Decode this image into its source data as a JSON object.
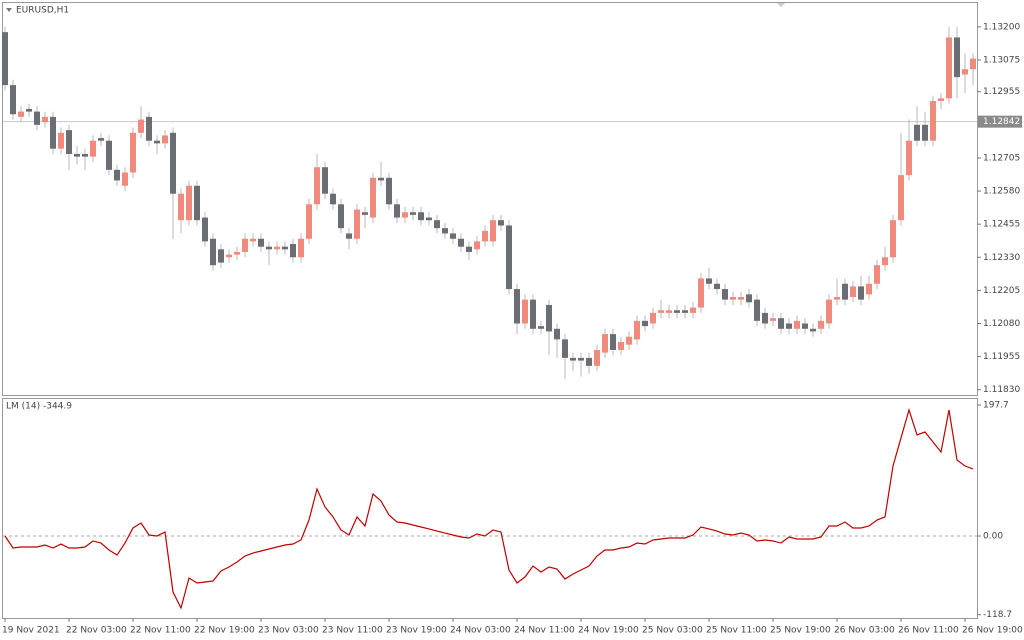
{
  "chart_data": [
    {
      "type": "candlestick",
      "title": "EURUSD,H1",
      "categories": [
        "19 Nov 2021",
        null,
        null,
        null,
        null,
        null,
        null,
        null,
        "22 Nov 03:00",
        null,
        null,
        null,
        null,
        null,
        null,
        null,
        "22 Nov 11:00",
        null,
        null,
        null,
        null,
        null,
        null,
        null,
        "22 Nov 19:00",
        null,
        null,
        null,
        null,
        null,
        null,
        null,
        "23 Nov 03:00",
        null,
        null,
        null,
        null,
        null,
        null,
        null,
        "23 Nov 11:00",
        null,
        null,
        null,
        null,
        null,
        null,
        null,
        "23 Nov 19:00",
        null,
        null,
        null,
        null,
        null,
        null,
        null,
        "24 Nov 03:00",
        null,
        null,
        null,
        null,
        null,
        null,
        null,
        "24 Nov 11:00",
        null,
        null,
        null,
        null,
        null,
        null,
        null,
        "24 Nov 19:00",
        null,
        null,
        null,
        null,
        null,
        null,
        null,
        "25 Nov 03:00",
        null,
        null,
        null,
        null,
        null,
        null,
        null,
        "25 Nov 11:00",
        null,
        null,
        null,
        null,
        null,
        null,
        null,
        "25 Nov 19:00",
        null,
        null,
        null,
        null,
        null,
        null,
        null,
        "26 Nov 03:00",
        null,
        null,
        null,
        null,
        null,
        null,
        null,
        "26 Nov 11:00",
        null,
        null,
        null,
        null,
        null,
        null,
        null,
        "26 Nov 19:00",
        null
      ],
      "candles": [
        [
          1.1318,
          1.132,
          1.1296,
          1.1298
        ],
        [
          1.1298,
          1.13,
          1.1285,
          1.1287
        ],
        [
          1.1286,
          1.129,
          1.1284,
          1.1288
        ],
        [
          1.1289,
          1.1291,
          1.1286,
          1.1288
        ],
        [
          1.1288,
          1.129,
          1.1281,
          1.1283
        ],
        [
          1.1284,
          1.1288,
          1.1282,
          1.1286
        ],
        [
          1.1286,
          1.1288,
          1.1272,
          1.1274
        ],
        [
          1.1274,
          1.1282,
          1.1272,
          1.128
        ],
        [
          1.1281,
          1.1283,
          1.1266,
          1.1272
        ],
        [
          1.1272,
          1.1275,
          1.1268,
          1.1271
        ],
        [
          1.1272,
          1.1274,
          1.1266,
          1.1271
        ],
        [
          1.1271,
          1.1279,
          1.1269,
          1.1277
        ],
        [
          1.1278,
          1.128,
          1.1275,
          1.1277
        ],
        [
          1.1277,
          1.1279,
          1.1264,
          1.1266
        ],
        [
          1.1266,
          1.1268,
          1.126,
          1.1262
        ],
        [
          1.126,
          1.1267,
          1.1258,
          1.1265
        ],
        [
          1.1265,
          1.1282,
          1.1263,
          1.128
        ],
        [
          1.128,
          1.129,
          1.1278,
          1.1285
        ],
        [
          1.1286,
          1.1288,
          1.1275,
          1.1277
        ],
        [
          1.1277,
          1.1279,
          1.1272,
          1.1276
        ],
        [
          1.1276,
          1.1281,
          1.1274,
          1.1279
        ],
        [
          1.128,
          1.1282,
          1.124,
          1.1257
        ],
        [
          1.1247,
          1.1259,
          1.1242,
          1.1257
        ],
        [
          1.1247,
          1.1262,
          1.1245,
          1.126
        ],
        [
          1.126,
          1.1262,
          1.1245,
          1.1247
        ],
        [
          1.1248,
          1.125,
          1.1237,
          1.1239
        ],
        [
          1.124,
          1.1242,
          1.1228,
          1.123
        ],
        [
          1.1236,
          1.1238,
          1.1229,
          1.1231
        ],
        [
          1.1233,
          1.1236,
          1.1231,
          1.1234
        ],
        [
          1.1234,
          1.1237,
          1.1232,
          1.1235
        ],
        [
          1.1235,
          1.1242,
          1.1233,
          1.124
        ],
        [
          1.1239,
          1.1242,
          1.1237,
          1.124
        ],
        [
          1.124,
          1.1242,
          1.1235,
          1.1237
        ],
        [
          1.1237,
          1.1239,
          1.123,
          1.1236
        ],
        [
          1.1236,
          1.1239,
          1.1234,
          1.1237
        ],
        [
          1.1237,
          1.1239,
          1.1234,
          1.1236
        ],
        [
          1.1238,
          1.124,
          1.1231,
          1.1233
        ],
        [
          1.1233,
          1.1242,
          1.1231,
          1.124
        ],
        [
          1.124,
          1.1255,
          1.1238,
          1.1253
        ],
        [
          1.1253,
          1.1272,
          1.1251,
          1.1267
        ],
        [
          1.1267,
          1.1269,
          1.1255,
          1.1257
        ],
        [
          1.1257,
          1.1259,
          1.1251,
          1.1253
        ],
        [
          1.1253,
          1.1255,
          1.1242,
          1.1244
        ],
        [
          1.1242,
          1.1244,
          1.1236,
          1.124
        ],
        [
          1.124,
          1.1253,
          1.1238,
          1.1251
        ],
        [
          1.125,
          1.1252,
          1.1244,
          1.1249
        ],
        [
          1.1248,
          1.1265,
          1.1246,
          1.1263
        ],
        [
          1.1263,
          1.1269,
          1.126,
          1.1262
        ],
        [
          1.1263,
          1.1265,
          1.1251,
          1.1253
        ],
        [
          1.1253,
          1.1255,
          1.1246,
          1.1248
        ],
        [
          1.1248,
          1.1252,
          1.1246,
          1.125
        ],
        [
          1.125,
          1.1252,
          1.1247,
          1.1249
        ],
        [
          1.125,
          1.1252,
          1.1245,
          1.1247
        ],
        [
          1.1248,
          1.125,
          1.1245,
          1.1247
        ],
        [
          1.1247,
          1.1249,
          1.1242,
          1.1244
        ],
        [
          1.1244,
          1.1246,
          1.124,
          1.1242
        ],
        [
          1.1242,
          1.1244,
          1.1238,
          1.124
        ],
        [
          1.124,
          1.1242,
          1.1235,
          1.1237
        ],
        [
          1.1237,
          1.1239,
          1.1232,
          1.1235
        ],
        [
          1.1236,
          1.1241,
          1.1234,
          1.1239
        ],
        [
          1.1239,
          1.1245,
          1.1237,
          1.1243
        ],
        [
          1.1239,
          1.1249,
          1.1237,
          1.1247
        ],
        [
          1.1247,
          1.1249,
          1.1243,
          1.1245
        ],
        [
          1.1245,
          1.1247,
          1.1219,
          1.1221
        ],
        [
          1.1221,
          1.1223,
          1.1204,
          1.1208
        ],
        [
          1.1208,
          1.1219,
          1.1206,
          1.1217
        ],
        [
          1.1217,
          1.1219,
          1.1204,
          1.1206
        ],
        [
          1.1207,
          1.1209,
          1.1204,
          1.1206
        ],
        [
          1.1215,
          1.1217,
          1.1196,
          1.1205
        ],
        [
          1.1206,
          1.1208,
          1.1195,
          1.1202
        ],
        [
          1.1202,
          1.1204,
          1.1187,
          1.1195
        ],
        [
          1.1195,
          1.1197,
          1.119,
          1.1194
        ],
        [
          1.1195,
          1.1197,
          1.1188,
          1.1194
        ],
        [
          1.1195,
          1.1197,
          1.1189,
          1.1192
        ],
        [
          1.1192,
          1.12,
          1.119,
          1.1198
        ],
        [
          1.1197,
          1.1206,
          1.1195,
          1.1204
        ],
        [
          1.1204,
          1.1206,
          1.1196,
          1.1198
        ],
        [
          1.1198,
          1.1203,
          1.1196,
          1.1201
        ],
        [
          1.12,
          1.1205,
          1.1198,
          1.1203
        ],
        [
          1.1202,
          1.1211,
          1.12,
          1.1209
        ],
        [
          1.1209,
          1.1211,
          1.1205,
          1.1207
        ],
        [
          1.1208,
          1.1214,
          1.1206,
          1.1212
        ],
        [
          1.1212,
          1.1217,
          1.121,
          1.1213
        ],
        [
          1.1212,
          1.1215,
          1.121,
          1.1213
        ],
        [
          1.1213,
          1.1215,
          1.121,
          1.1212
        ],
        [
          1.1213,
          1.1215,
          1.121,
          1.1212
        ],
        [
          1.1212,
          1.1216,
          1.121,
          1.1214
        ],
        [
          1.1214,
          1.1227,
          1.1212,
          1.1225
        ],
        [
          1.1225,
          1.1229,
          1.1221,
          1.1223
        ],
        [
          1.1223,
          1.1225,
          1.1219,
          1.1221
        ],
        [
          1.1221,
          1.1223,
          1.1215,
          1.1217
        ],
        [
          1.1217,
          1.122,
          1.1215,
          1.1218
        ],
        [
          1.1217,
          1.122,
          1.1215,
          1.1218
        ],
        [
          1.1219,
          1.1221,
          1.1214,
          1.1216
        ],
        [
          1.1217,
          1.1219,
          1.1207,
          1.1209
        ],
        [
          1.1212,
          1.1214,
          1.1206,
          1.1208
        ],
        [
          1.1209,
          1.1212,
          1.1207,
          1.121
        ],
        [
          1.121,
          1.1212,
          1.1204,
          1.1206
        ],
        [
          1.1208,
          1.121,
          1.1204,
          1.1206
        ],
        [
          1.1206,
          1.1211,
          1.1204,
          1.1209
        ],
        [
          1.1208,
          1.121,
          1.1204,
          1.1206
        ],
        [
          1.1206,
          1.1208,
          1.1203,
          1.1205
        ],
        [
          1.1206,
          1.1211,
          1.1204,
          1.1209
        ],
        [
          1.1208,
          1.1219,
          1.1206,
          1.1217
        ],
        [
          1.1217,
          1.1225,
          1.1215,
          1.1218
        ],
        [
          1.1223,
          1.1225,
          1.1215,
          1.1217
        ],
        [
          1.1218,
          1.1224,
          1.1216,
          1.1222
        ],
        [
          1.1222,
          1.1226,
          1.1215,
          1.1217
        ],
        [
          1.1219,
          1.1226,
          1.1217,
          1.1223
        ],
        [
          1.1223,
          1.1232,
          1.1221,
          1.123
        ],
        [
          1.123,
          1.1237,
          1.1228,
          1.1233
        ],
        [
          1.1233,
          1.1249,
          1.1231,
          1.1247
        ],
        [
          1.1247,
          1.128,
          1.1245,
          1.1264
        ],
        [
          1.1264,
          1.1285,
          1.1262,
          1.1277
        ],
        [
          1.1283,
          1.129,
          1.1275,
          1.1277
        ],
        [
          1.1283,
          1.1288,
          1.1275,
          1.1277
        ],
        [
          1.1277,
          1.1294,
          1.1275,
          1.1292
        ],
        [
          1.1292,
          1.1295,
          1.1289,
          1.1293
        ],
        [
          1.1293,
          1.132,
          1.1291,
          1.1316
        ],
        [
          1.1316,
          1.132,
          1.1293,
          1.1301
        ],
        [
          1.1302,
          1.131,
          1.1295,
          1.1304
        ],
        [
          1.1304,
          1.131,
          1.1298,
          1.1308
        ]
      ],
      "up_color": "#ef8a7c",
      "down_color": "#6a6d73",
      "ylim": [
        1.1181,
        1.1329
      ],
      "yticks": [
        {
          "value": 1.132,
          "label": "1.13200"
        },
        1.13075,
        1.12955,
        1.12705,
        {
          "value": 1.1258,
          "label": "1.12580"
        },
        1.12455,
        {
          "value": 1.1233,
          "label": "1.12330"
        },
        1.12205,
        {
          "value": 1.1208,
          "label": "1.12080"
        },
        1.11955,
        {
          "value": 1.1183,
          "label": "1.11830"
        }
      ],
      "current_price": 1.12842
    },
    {
      "type": "line",
      "title": "LM (14) -344.9",
      "color": "#c00000",
      "values": [
        0,
        -18.1,
        -16.6,
        -16.6,
        -16.6,
        -13.6,
        -18.1,
        -12.1,
        -18.1,
        -18.1,
        -16.6,
        -7.5,
        -10.6,
        -21.1,
        -28.7,
        -10.6,
        12.1,
        19.6,
        1.5,
        0,
        6.0,
        -84.5,
        -108.6,
        -63.4,
        -70.9,
        -69.4,
        -67.9,
        -52.8,
        -46.8,
        -39.2,
        -30.2,
        -25.7,
        -22.6,
        -19.6,
        -16.6,
        -13.6,
        -12.1,
        -6.0,
        24.1,
        70.9,
        43.8,
        28.7,
        9.1,
        1.5,
        28.7,
        15.1,
        63.4,
        52.8,
        31.7,
        21.1,
        19.6,
        16.6,
        13.6,
        10.6,
        7.5,
        4.5,
        1.5,
        -1.5,
        -3.0,
        3.0,
        0,
        9.1,
        6.0,
        -51.3,
        -70.9,
        -61.9,
        -45.3,
        -54.3,
        -46.8,
        -49.8,
        -64.9,
        -57.3,
        -51.3,
        -45.3,
        -30.2,
        -21.1,
        -21.1,
        -18.1,
        -16.6,
        -10.6,
        -12.1,
        -6.0,
        -4.5,
        -3.0,
        -3.0,
        -3.0,
        1.5,
        13.6,
        10.6,
        7.5,
        3.0,
        1.5,
        4.5,
        1.5,
        -7.5,
        -6.0,
        -7.5,
        -10.6,
        -1.5,
        -4.5,
        -4.5,
        -4.5,
        -1.5,
        15.1,
        15.1,
        21.1,
        12.1,
        12.1,
        15.1,
        24.1,
        28.7,
        105.6,
        147.9,
        190.1,
        152.4,
        156.9,
        141.8,
        126.8,
        190.1,
        114.7,
        105.6,
        101.1
      ],
      "ylim": [
        -123.7,
        208.2
      ],
      "yticks": [
        197.7,
        {
          "value": 0,
          "label": "0.00"
        },
        -118.7
      ],
      "reference_line": 0
    }
  ]
}
